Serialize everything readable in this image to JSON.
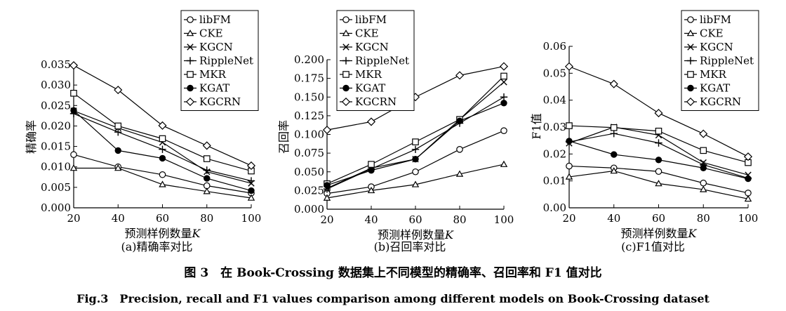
{
  "chart_data": [
    {
      "type": "line",
      "ylabel": "精确率",
      "xlabel_main": "预测样例数量",
      "xlabel_var": "K",
      "caption": "(a)精确率对比",
      "x": [
        20,
        40,
        60,
        80,
        100
      ],
      "xlim": [
        20,
        100
      ],
      "ylim": [
        0,
        0.035
      ],
      "yticks": [
        0.0,
        0.005,
        0.01,
        0.015,
        0.02,
        0.025,
        0.03,
        0.035
      ],
      "ytick_labels": [
        "0.000",
        "0.005",
        "0.010",
        "0.015",
        "0.020",
        "0.025",
        "0.030",
        "0.035"
      ],
      "xtick_labels": [
        "20",
        "40",
        "60",
        "80",
        "100"
      ],
      "legend": "top-right",
      "series": [
        {
          "name": "libFM",
          "marker": "circle-open",
          "values": [
            0.013,
            0.01,
            0.0081,
            0.0054,
            0.0036
          ]
        },
        {
          "name": "CKE",
          "marker": "triangle",
          "values": [
            0.0097,
            0.0097,
            0.0057,
            0.004,
            0.0024
          ]
        },
        {
          "name": "KGCN",
          "marker": "x",
          "values": [
            0.0237,
            0.0195,
            0.016,
            0.0088,
            0.006
          ]
        },
        {
          "name": "RippleNet",
          "marker": "plus",
          "values": [
            0.023,
            0.0185,
            0.0143,
            0.0092,
            0.0066
          ]
        },
        {
          "name": "MKR",
          "marker": "square-open",
          "values": [
            0.028,
            0.02,
            0.0169,
            0.012,
            0.009
          ]
        },
        {
          "name": "KGAT",
          "marker": "circle-filled",
          "values": [
            0.0238,
            0.014,
            0.0121,
            0.0072,
            0.0042
          ]
        },
        {
          "name": "KGCRN",
          "marker": "diamond-open",
          "values": [
            0.0348,
            0.0288,
            0.0201,
            0.0152,
            0.0103
          ]
        }
      ]
    },
    {
      "type": "line",
      "ylabel": "召回率",
      "xlabel_main": "预测样例数量",
      "xlabel_var": "K",
      "caption": "(b)召回率对比",
      "x": [
        20,
        40,
        60,
        80,
        100
      ],
      "xlim": [
        20,
        100
      ],
      "ylim": [
        0,
        0.2
      ],
      "yticks": [
        0.0,
        0.025,
        0.05,
        0.075,
        0.1,
        0.125,
        0.15,
        0.175,
        0.2
      ],
      "ytick_labels": [
        "0.000",
        "0.025",
        "0.050",
        "0.075",
        "0.100",
        "0.125",
        "0.150",
        "0.175",
        "0.200"
      ],
      "xtick_labels": [
        "20",
        "40",
        "60",
        "80",
        "100"
      ],
      "legend": "top-left",
      "series": [
        {
          "name": "libFM",
          "marker": "circle-open",
          "values": [
            0.021,
            0.03,
            0.05,
            0.08,
            0.105
          ]
        },
        {
          "name": "CKE",
          "marker": "triangle",
          "values": [
            0.015,
            0.025,
            0.033,
            0.047,
            0.06
          ]
        },
        {
          "name": "KGCN",
          "marker": "x",
          "values": [
            0.028,
            0.055,
            0.067,
            0.12,
            0.17
          ]
        },
        {
          "name": "RippleNet",
          "marker": "plus",
          "values": [
            0.027,
            0.054,
            0.08,
            0.115,
            0.15
          ]
        },
        {
          "name": "MKR",
          "marker": "square-open",
          "values": [
            0.034,
            0.06,
            0.09,
            0.12,
            0.178
          ]
        },
        {
          "name": "KGAT",
          "marker": "circle-filled",
          "values": [
            0.032,
            0.052,
            0.067,
            0.118,
            0.142
          ]
        },
        {
          "name": "KGCRN",
          "marker": "diamond-open",
          "values": [
            0.106,
            0.117,
            0.15,
            0.179,
            0.191
          ]
        }
      ]
    },
    {
      "type": "line",
      "ylabel": "F1值",
      "xlabel_main": "预测样例数量",
      "xlabel_var": "K",
      "caption": "(c)F1值对比",
      "x": [
        20,
        40,
        60,
        80,
        100
      ],
      "xlim": [
        20,
        100
      ],
      "ylim": [
        0,
        0.06
      ],
      "yticks": [
        0.0,
        0.01,
        0.02,
        0.03,
        0.04,
        0.05,
        0.06
      ],
      "ytick_labels": [
        "0.00",
        "0.01",
        "0.02",
        "0.03",
        "0.04",
        "0.05",
        "0.06"
      ],
      "xtick_labels": [
        "20",
        "40",
        "60",
        "80",
        "100"
      ],
      "legend": "top-right",
      "series": [
        {
          "name": "libFM",
          "marker": "circle-open",
          "values": [
            0.0155,
            0.0148,
            0.0135,
            0.0092,
            0.0055
          ]
        },
        {
          "name": "CKE",
          "marker": "triangle",
          "values": [
            0.0115,
            0.0137,
            0.009,
            0.0068,
            0.0033
          ]
        },
        {
          "name": "KGCN",
          "marker": "x",
          "values": [
            0.024,
            0.03,
            0.027,
            0.0168,
            0.0122
          ]
        },
        {
          "name": "RippleNet",
          "marker": "plus",
          "values": [
            0.0245,
            0.0276,
            0.0241,
            0.016,
            0.011
          ]
        },
        {
          "name": "MKR",
          "marker": "square-open",
          "values": [
            0.0305,
            0.0298,
            0.0285,
            0.0213,
            0.0168
          ]
        },
        {
          "name": "KGAT",
          "marker": "circle-filled",
          "values": [
            0.0248,
            0.0198,
            0.0178,
            0.0148,
            0.0108
          ]
        },
        {
          "name": "KGCRN",
          "marker": "diamond-open",
          "values": [
            0.0525,
            0.046,
            0.0352,
            0.0275,
            0.019
          ]
        }
      ]
    }
  ],
  "figure": {
    "caption_cn": "图 3　在 Book-Crossing 数据集上不同模型的精确率、召回率和 F1 值对比",
    "caption_en": "Fig.3　Precision, recall and F1 values comparison among different models on Book-Crossing dataset"
  }
}
